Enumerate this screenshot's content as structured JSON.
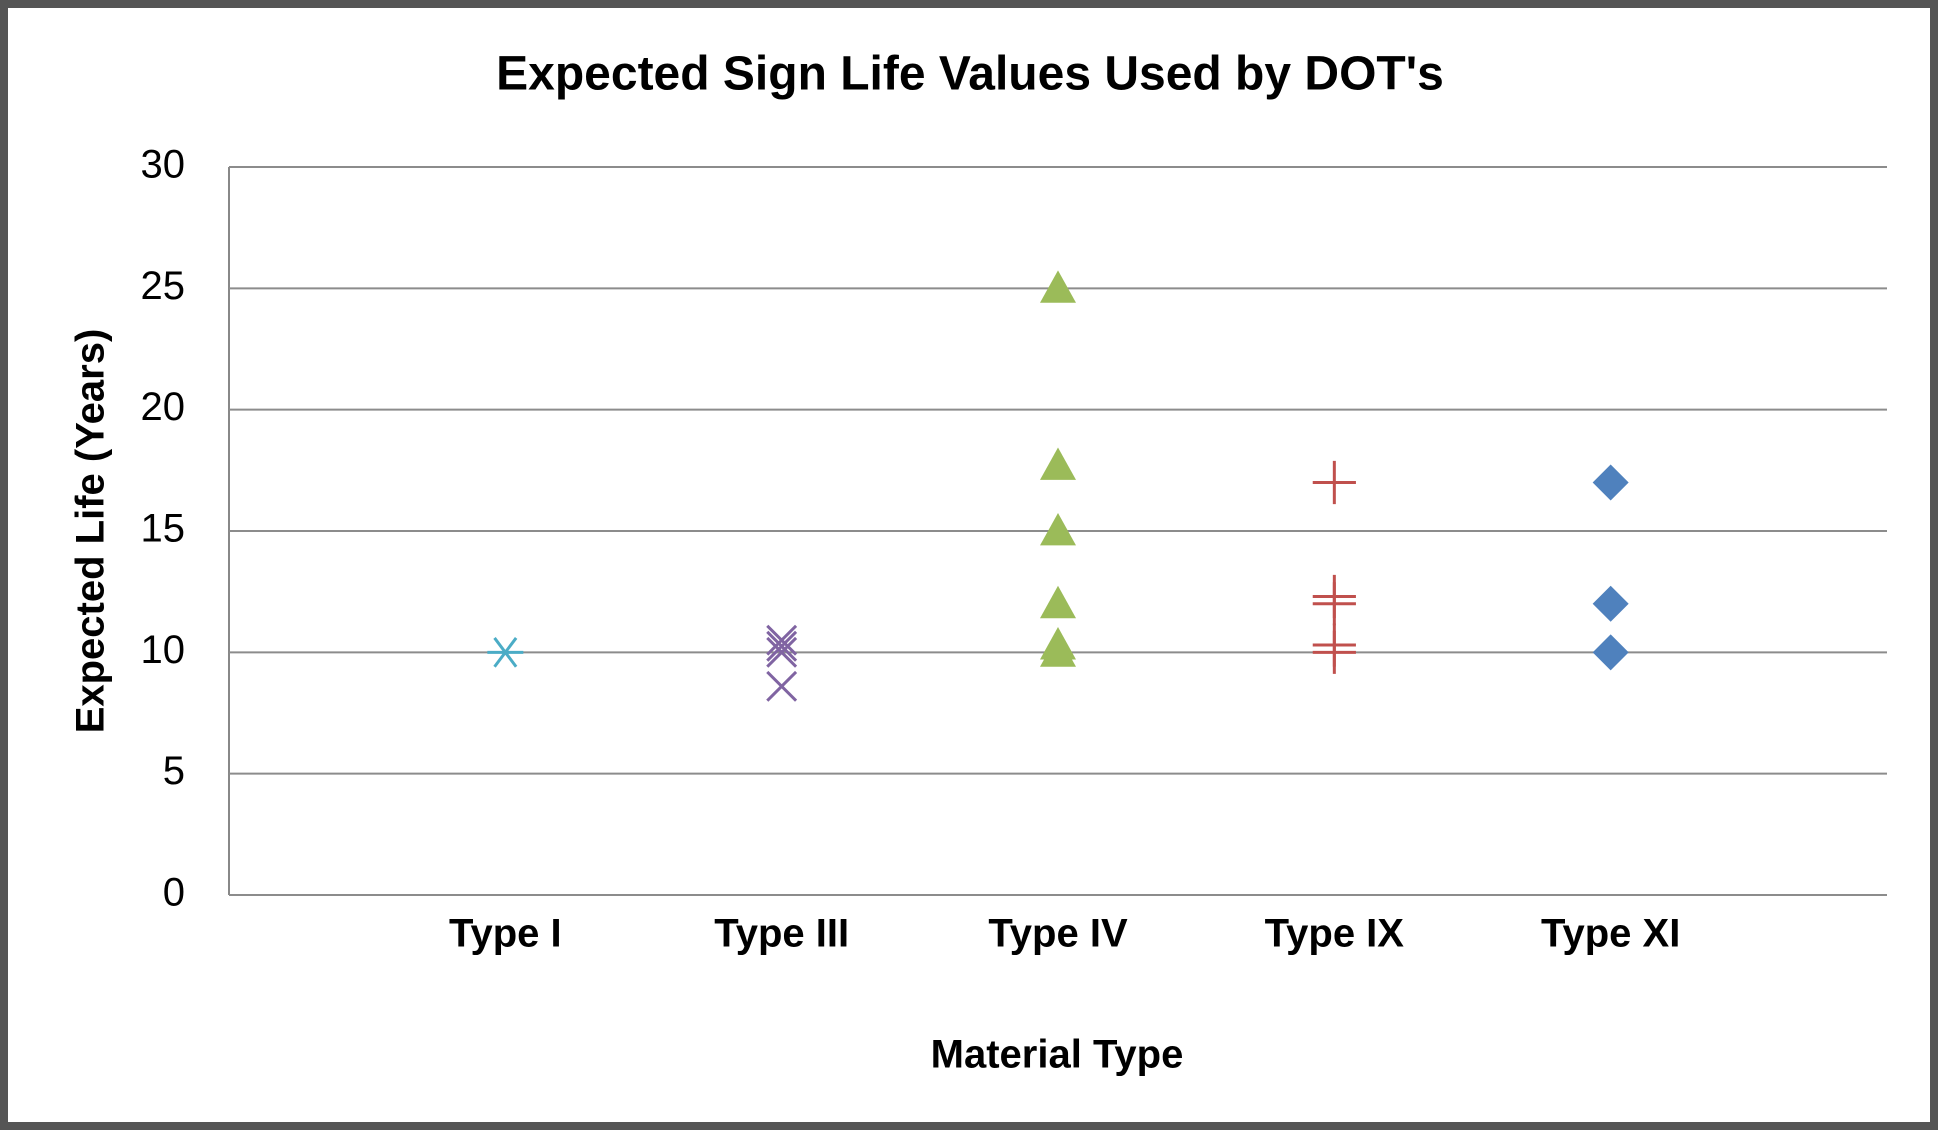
{
  "chart_data": {
    "type": "scatter",
    "title": "Expected Sign Life Values Used by DOT's",
    "x_label": "Material Type",
    "y_label": "Expected Life (Years)",
    "xlim": [
      0,
      6
    ],
    "xticks": [
      {
        "value": 1,
        "label": "Type I"
      },
      {
        "value": 2,
        "label": "Type III"
      },
      {
        "value": 3,
        "label": "Type IV"
      },
      {
        "value": 4,
        "label": "Type IX"
      },
      {
        "value": 5,
        "label": "Type XI"
      }
    ],
    "ylim": [
      0,
      30
    ],
    "yticks": [
      0,
      5,
      10,
      15,
      20,
      25,
      30
    ],
    "grid": true,
    "series": [
      {
        "color": "#4bacc6",
        "marker": "asterisk",
        "x": [
          1
        ],
        "values": [
          10
        ]
      },
      {
        "color": "#8064a2",
        "marker": "x",
        "x": [
          2,
          2,
          2,
          2
        ],
        "values": [
          10.5,
          10.25,
          10,
          8.6
        ]
      },
      {
        "color": "#9bbb59",
        "marker": "triangle",
        "x": [
          3,
          3,
          3,
          3,
          3,
          3
        ],
        "values": [
          25,
          17.7,
          15,
          12,
          10.3,
          10
        ]
      },
      {
        "color": "#c0504d",
        "marker": "plus",
        "x": [
          4,
          4,
          4,
          4,
          4
        ],
        "values": [
          17,
          12.3,
          12,
          10.3,
          10
        ]
      },
      {
        "color": "#4f81bd",
        "marker": "diamond",
        "x": [
          5,
          5,
          5
        ],
        "values": [
          17,
          12,
          10
        ]
      }
    ]
  }
}
